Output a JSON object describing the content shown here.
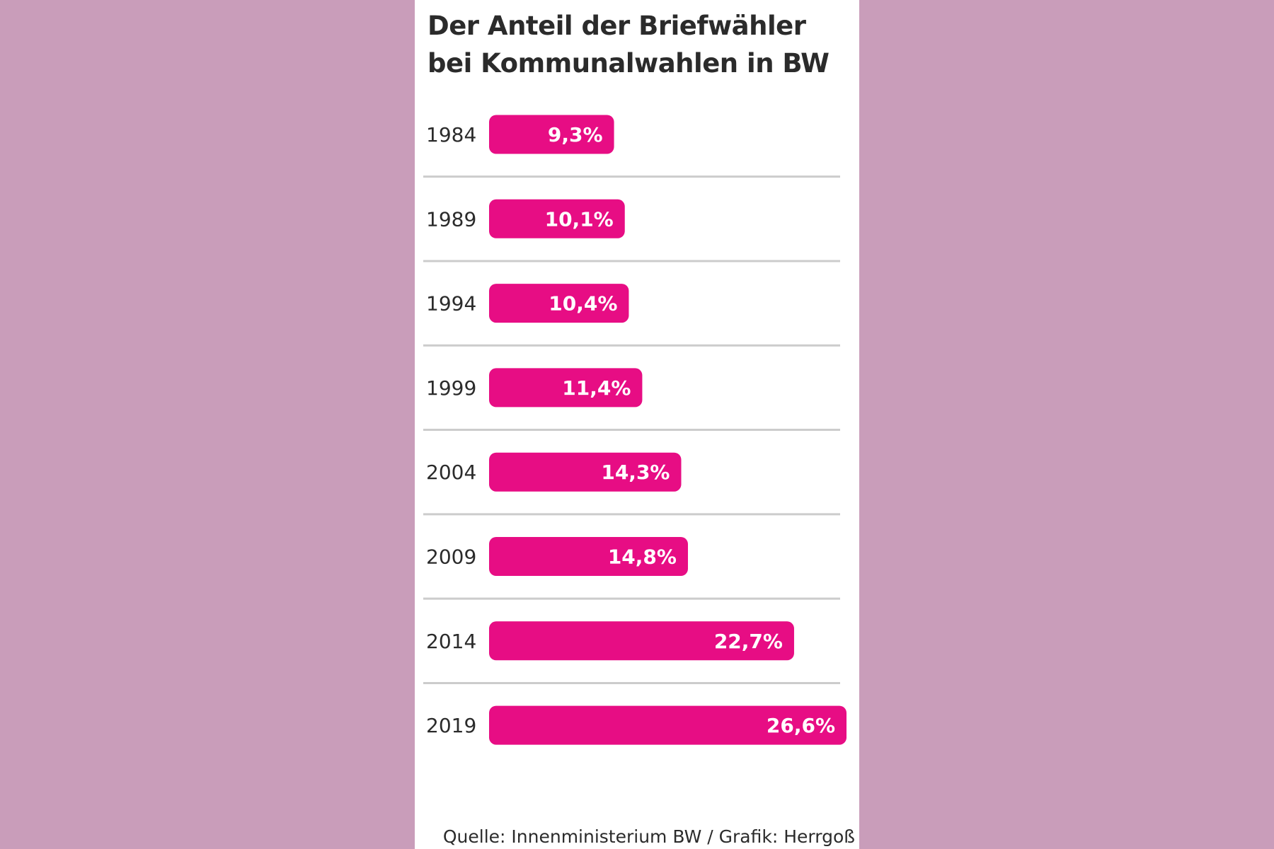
{
  "colors": {
    "background": "#c99dba",
    "panel": "#ffffff",
    "bar": "#e70d84",
    "separator": "#cccccc",
    "text": "#2b2b2b"
  },
  "chart_data": {
    "type": "bar",
    "orientation": "horizontal",
    "title_line1": "Der Anteil der Briefwähler",
    "title_line2": "bei Kommunalwahlen in BW",
    "categories": [
      "1984",
      "1989",
      "1994",
      "1999",
      "2004",
      "2009",
      "2014",
      "2019"
    ],
    "values": [
      9.3,
      10.1,
      10.4,
      11.4,
      14.3,
      14.8,
      22.7,
      26.6
    ],
    "value_labels": [
      "9,3%",
      "10,1%",
      "10,4%",
      "11,4%",
      "14,3%",
      "14,8%",
      "22,7%",
      "26,6%"
    ],
    "unit": "%",
    "xlim": [
      0,
      26.6
    ],
    "grid": false,
    "legend": "none"
  },
  "source": "Quelle: Innenministerium BW / Grafik: Herrgoß"
}
